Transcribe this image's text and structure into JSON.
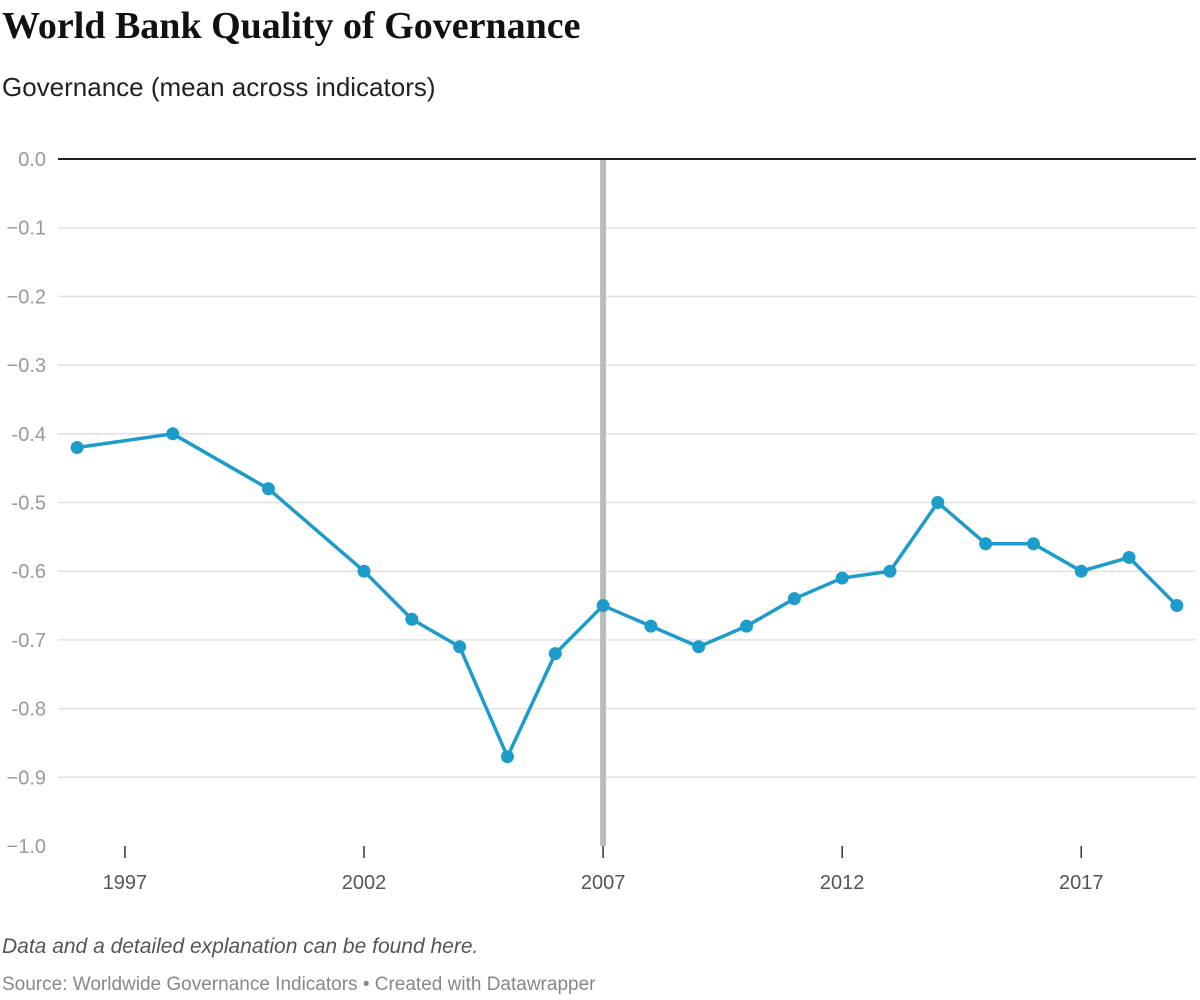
{
  "chart_data": {
    "type": "line",
    "title": "World Bank Quality of Governance",
    "subtitle": "Governance (mean across indicators)",
    "x": [
      1996,
      1998,
      2000,
      2002,
      2003,
      2004,
      2005,
      2006,
      2007,
      2008,
      2009,
      2010,
      2011,
      2012,
      2013,
      2014,
      2015,
      2016,
      2017,
      2018,
      2019
    ],
    "series": [
      {
        "values": [
          -0.42,
          -0.4,
          -0.48,
          -0.6,
          -0.67,
          -0.71,
          -0.87,
          -0.72,
          -0.65,
          -0.68,
          -0.71,
          -0.68,
          -0.64,
          -0.61,
          -0.6,
          -0.5,
          -0.56,
          -0.56,
          -0.6,
          -0.58,
          -0.65
        ],
        "color": "#1d9ccc"
      }
    ],
    "xlabel": "",
    "ylabel": "",
    "ylim": [
      -1.0,
      0.0
    ],
    "xlim": [
      1995.6,
      2019.4
    ],
    "yticks": [
      0.0,
      -0.1,
      -0.2,
      -0.3,
      -0.4,
      -0.5,
      -0.6,
      -0.7,
      -0.8,
      -0.9,
      -1.0
    ],
    "ytick_labels": [
      "0.0",
      "−0.1",
      "−0.2",
      "−0.3",
      "-0.4",
      "-0.5",
      "-0.6",
      "-0.7",
      "-0.8",
      "−0.9",
      "−1.0"
    ],
    "xticks": [
      1997,
      2002,
      2007,
      2012,
      2017
    ],
    "xtick_labels": [
      "1997",
      "2002",
      "2007",
      "2012",
      "2017"
    ],
    "reference_line_x": 2007,
    "reference_line_color": "#bbbbbb",
    "grid": true,
    "legend": "none"
  },
  "note": "Data and a detailed explanation can be found here.",
  "source": "Source: Worldwide Governance Indicators • Created with Datawrapper"
}
